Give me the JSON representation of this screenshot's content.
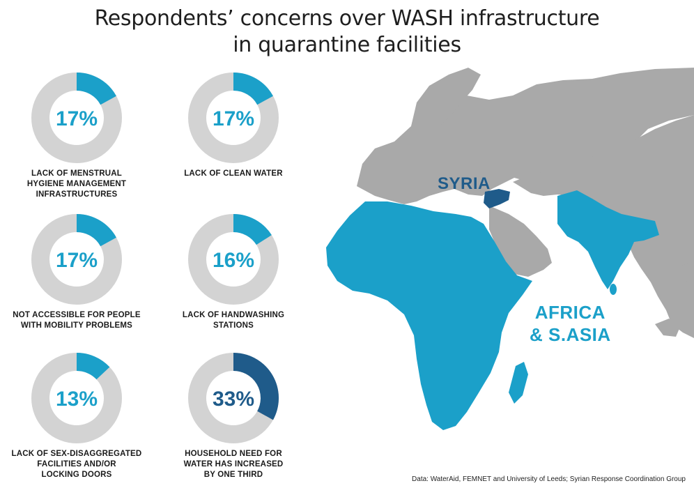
{
  "title_lines": [
    "Respondents’ concerns over WASH infrastructure",
    "in quarantine facilities"
  ],
  "chart_data": {
    "type": "pie",
    "subtype": "donut",
    "title": "Respondents’ concerns over WASH infrastructure in quarantine facilities",
    "colors": {
      "highlight": "#1ba0c9",
      "highlight_dark": "#1f5b8a",
      "remainder": "#d3d3d3"
    },
    "items": [
      {
        "value": 17,
        "value_label": "17%",
        "label_lines": [
          "LACK OF MENSTRUAL",
          "HYGIENE MANAGEMENT",
          "INFRASTRUCTURES"
        ],
        "color": "#1ba0c9"
      },
      {
        "value": 17,
        "value_label": "17%",
        "label_lines": [
          "LACK OF CLEAN WATER"
        ],
        "color": "#1ba0c9"
      },
      {
        "value": 17,
        "value_label": "17%",
        "label_lines": [
          "NOT ACCESSIBLE FOR PEOPLE",
          "WITH MOBILITY PROBLEMS"
        ],
        "color": "#1ba0c9"
      },
      {
        "value": 16,
        "value_label": "16%",
        "label_lines": [
          "LACK OF HANDWASHING",
          "STATIONS"
        ],
        "color": "#1ba0c9"
      },
      {
        "value": 13,
        "value_label": "13%",
        "label_lines": [
          "LACK OF SEX-DISAGGREGATED",
          "FACILITIES AND/OR",
          "LOCKING DOORS"
        ],
        "color": "#1ba0c9"
      },
      {
        "value": 33,
        "value_label": "33%",
        "label_lines": [
          "HOUSEHOLD NEED FOR",
          "WATER HAS INCREASED",
          "BY ONE THIRD"
        ],
        "color": "#1f5b8a"
      }
    ]
  },
  "map": {
    "regions": [
      "SYRIA"
    ],
    "region_label_lines": [
      "AFRICA",
      "& S.ASIA"
    ],
    "colors": {
      "land": "#a9a9a9",
      "highlight": "#1ba0c9",
      "syria": "#1f5b8a"
    }
  },
  "source": "Data: WaterAid, FEMNET and University of Leeds; Syrian Response Coordination Group"
}
